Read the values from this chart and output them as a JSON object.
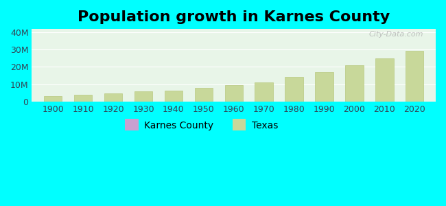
{
  "title": "Population growth in Karnes County",
  "background_color": "#00FFFF",
  "plot_bg_gradient_top": "#e8f5e8",
  "plot_bg_gradient_bottom": "#f0fff0",
  "years": [
    1900,
    1910,
    1920,
    1930,
    1940,
    1950,
    1960,
    1970,
    1980,
    1990,
    2000,
    2010,
    2020
  ],
  "texas_values": [
    3048700,
    3896500,
    4663228,
    5824715,
    6414824,
    7711194,
    9579677,
    11196730,
    14229191,
    16986510,
    20851820,
    25145561,
    29145505
  ],
  "karnes_values": [
    0,
    0,
    0,
    0,
    0,
    0,
    0,
    0,
    0,
    0,
    0,
    0,
    0
  ],
  "bar_color": "#c8d89a",
  "bar_edge_color": "#b8c880",
  "karnes_legend_color": "#c8a0d0",
  "texas_legend_color": "#c8d89a",
  "ylim": [
    0,
    42000000
  ],
  "yticks": [
    0,
    10000000,
    20000000,
    30000000,
    40000000
  ],
  "ytick_labels": [
    "0",
    "10M",
    "20M",
    "30M",
    "40M"
  ],
  "watermark": "City-Data.com",
  "title_fontsize": 16,
  "tick_fontsize": 9,
  "legend_fontsize": 10
}
